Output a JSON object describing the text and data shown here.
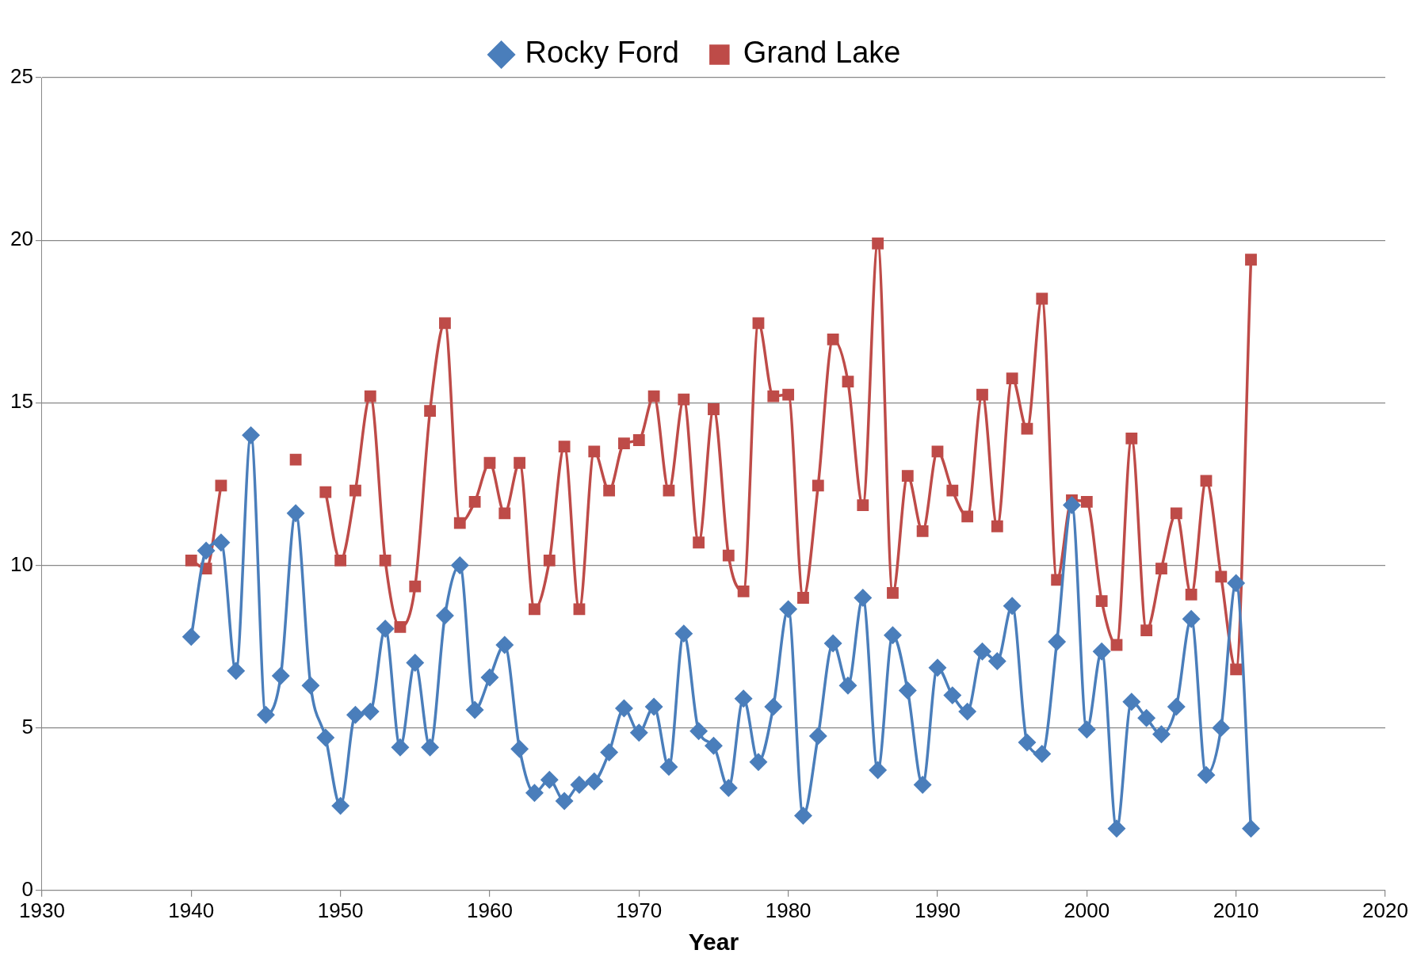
{
  "chart_data": {
    "type": "line",
    "xlabel": "Year",
    "xlim": [
      1930,
      2020
    ],
    "xticks": [
      1930,
      1940,
      1950,
      1960,
      1970,
      1980,
      1990,
      2000,
      2010,
      2020
    ],
    "ylim": [
      0,
      25
    ],
    "yticks": [
      0,
      5,
      10,
      15,
      20,
      25
    ],
    "grid": "y",
    "legend": "top",
    "line_style": "solid",
    "x": [
      1940,
      1941,
      1942,
      1943,
      1944,
      1945,
      1946,
      1947,
      1948,
      1949,
      1950,
      1951,
      1952,
      1953,
      1954,
      1955,
      1956,
      1957,
      1958,
      1959,
      1960,
      1961,
      1962,
      1963,
      1964,
      1965,
      1966,
      1967,
      1968,
      1969,
      1970,
      1971,
      1972,
      1973,
      1974,
      1975,
      1976,
      1977,
      1978,
      1979,
      1980,
      1981,
      1982,
      1983,
      1984,
      1985,
      1986,
      1987,
      1988,
      1989,
      1990,
      1991,
      1992,
      1993,
      1994,
      1995,
      1996,
      1997,
      1998,
      1999,
      2000,
      2001,
      2002,
      2003,
      2004,
      2005,
      2006,
      2007,
      2008,
      2009,
      2010,
      2011
    ],
    "series": [
      {
        "name": "Rocky Ford",
        "color": "#4a7ebb",
        "marker": "diamond",
        "values": [
          7.8,
          10.45,
          10.7,
          6.75,
          14.0,
          5.4,
          6.6,
          11.6,
          6.3,
          4.7,
          2.6,
          5.4,
          5.5,
          8.05,
          4.4,
          7.0,
          4.4,
          8.45,
          10.0,
          5.55,
          6.55,
          7.55,
          4.35,
          3.0,
          3.4,
          2.75,
          3.25,
          3.35,
          4.25,
          5.6,
          4.85,
          5.65,
          3.8,
          7.9,
          4.9,
          4.45,
          3.15,
          5.9,
          3.95,
          5.65,
          8.65,
          2.3,
          4.75,
          7.6,
          6.3,
          9.0,
          3.7,
          7.85,
          6.15,
          3.25,
          6.85,
          6.0,
          5.5,
          7.35,
          7.05,
          8.75,
          4.55,
          4.2,
          7.65,
          11.85,
          4.95,
          7.35,
          1.9,
          5.8,
          5.3,
          4.8,
          5.65,
          8.35,
          3.55,
          5.0,
          9.45,
          1.9
        ]
      },
      {
        "name": "Grand Lake",
        "color": "#be4b48",
        "marker": "square",
        "values": [
          10.15,
          9.9,
          12.45,
          null,
          null,
          null,
          null,
          13.25,
          null,
          12.25,
          10.15,
          12.3,
          15.2,
          10.15,
          8.1,
          9.35,
          14.75,
          17.45,
          11.3,
          11.95,
          13.15,
          11.6,
          13.15,
          8.65,
          10.15,
          13.65,
          8.65,
          13.5,
          12.3,
          13.75,
          13.85,
          15.2,
          12.3,
          15.1,
          10.7,
          14.8,
          10.3,
          9.2,
          17.45,
          15.2,
          15.25,
          9.0,
          12.45,
          16.95,
          15.65,
          11.85,
          19.9,
          9.15,
          12.75,
          11.05,
          13.5,
          12.3,
          11.5,
          15.25,
          11.2,
          15.75,
          14.2,
          18.2,
          9.55,
          12.0,
          11.95,
          8.9,
          7.55,
          13.9,
          8.0,
          9.9,
          11.6,
          9.1,
          12.6,
          9.65,
          6.8,
          19.4
        ]
      }
    ]
  }
}
